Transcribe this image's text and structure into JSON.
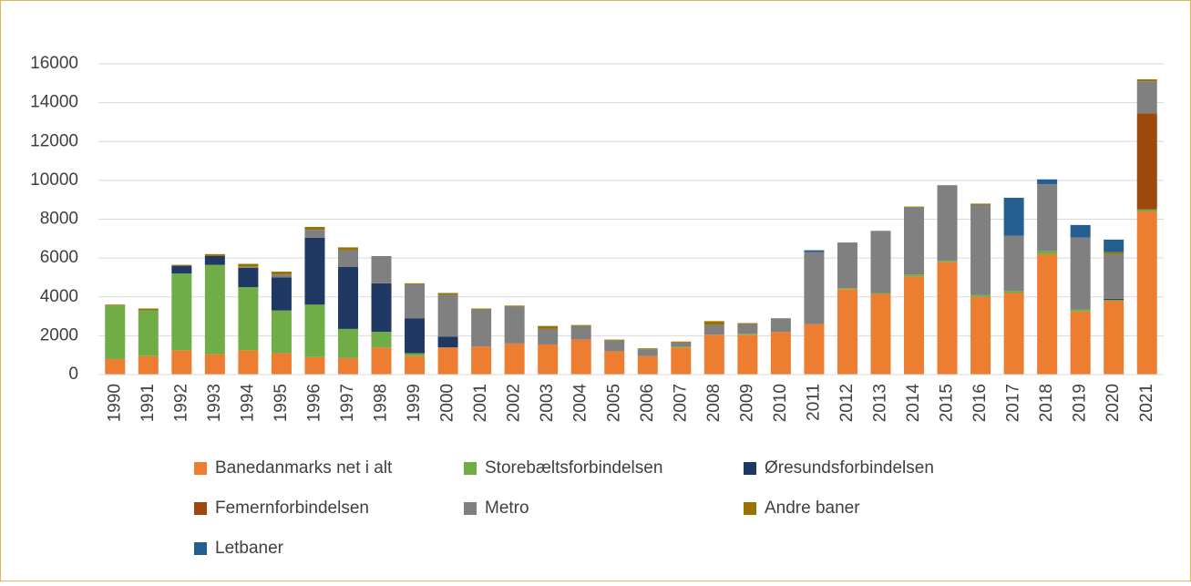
{
  "chart_data": {
    "type": "stacked_bar",
    "categories": [
      "1990",
      "1991",
      "1992",
      "1993",
      "1994",
      "1995",
      "1996",
      "1997",
      "1998",
      "1999",
      "2000",
      "2001",
      "2002",
      "2003",
      "2004",
      "2005",
      "2006",
      "2007",
      "2008",
      "2009",
      "2010",
      "2011",
      "2012",
      "2013",
      "2014",
      "2015",
      "2016",
      "2017",
      "2018",
      "2019",
      "2020",
      "2021"
    ],
    "series": [
      {
        "name": "Banedanmarks net i alt",
        "color": "#ed7d31",
        "values": [
          800,
          950,
          1250,
          1050,
          1250,
          1100,
          900,
          850,
          1400,
          950,
          1400,
          1450,
          1600,
          1550,
          1800,
          1200,
          950,
          1400,
          2050,
          2050,
          2200,
          2600,
          4400,
          4150,
          5050,
          5800,
          4000,
          4200,
          6200,
          3250,
          3800,
          8400
        ]
      },
      {
        "name": "Storebæltsforbindelsen",
        "color": "#70ad47",
        "values": [
          2750,
          2350,
          3950,
          4600,
          3250,
          2200,
          2700,
          1500,
          800,
          150,
          0,
          0,
          0,
          0,
          0,
          0,
          0,
          50,
          0,
          50,
          0,
          0,
          50,
          50,
          100,
          50,
          100,
          100,
          150,
          100,
          50,
          100
        ]
      },
      {
        "name": "Øresundsforbindelsen",
        "color": "#203864",
        "values": [
          0,
          0,
          400,
          450,
          1000,
          1700,
          3450,
          3200,
          2500,
          1800,
          550,
          0,
          0,
          0,
          0,
          0,
          0,
          0,
          0,
          0,
          0,
          0,
          0,
          0,
          0,
          0,
          0,
          0,
          0,
          0,
          50,
          0
        ]
      },
      {
        "name": "Femernforbindelsen",
        "color": "#9e480e",
        "values": [
          0,
          0,
          0,
          0,
          0,
          0,
          0,
          0,
          0,
          0,
          0,
          0,
          0,
          0,
          0,
          0,
          0,
          0,
          0,
          0,
          0,
          0,
          0,
          0,
          0,
          0,
          0,
          0,
          0,
          0,
          0,
          4950
        ]
      },
      {
        "name": "Metro",
        "color": "#808080",
        "values": [
          0,
          0,
          0,
          0,
          50,
          150,
          400,
          850,
          1400,
          1750,
          2150,
          1900,
          1900,
          800,
          700,
          550,
          350,
          200,
          500,
          500,
          700,
          3700,
          2350,
          3200,
          3450,
          3900,
          4650,
          2850,
          3450,
          3700,
          2300,
          1650
        ]
      },
      {
        "name": "Andre baner",
        "color": "#997300",
        "values": [
          50,
          100,
          50,
          100,
          150,
          150,
          150,
          150,
          0,
          50,
          100,
          50,
          50,
          150,
          50,
          50,
          50,
          50,
          200,
          50,
          0,
          0,
          0,
          0,
          50,
          0,
          50,
          0,
          0,
          0,
          100,
          100
        ]
      },
      {
        "name": "Letbaner",
        "color": "#255e91",
        "values": [
          0,
          0,
          0,
          0,
          0,
          0,
          0,
          0,
          0,
          0,
          0,
          0,
          0,
          0,
          0,
          0,
          0,
          0,
          0,
          0,
          0,
          100,
          0,
          0,
          0,
          0,
          0,
          1950,
          250,
          650,
          650,
          0
        ]
      }
    ],
    "ylim": [
      0,
      16000
    ],
    "yticks": [
      0,
      2000,
      4000,
      6000,
      8000,
      10000,
      12000,
      14000,
      16000
    ],
    "grid": true
  }
}
